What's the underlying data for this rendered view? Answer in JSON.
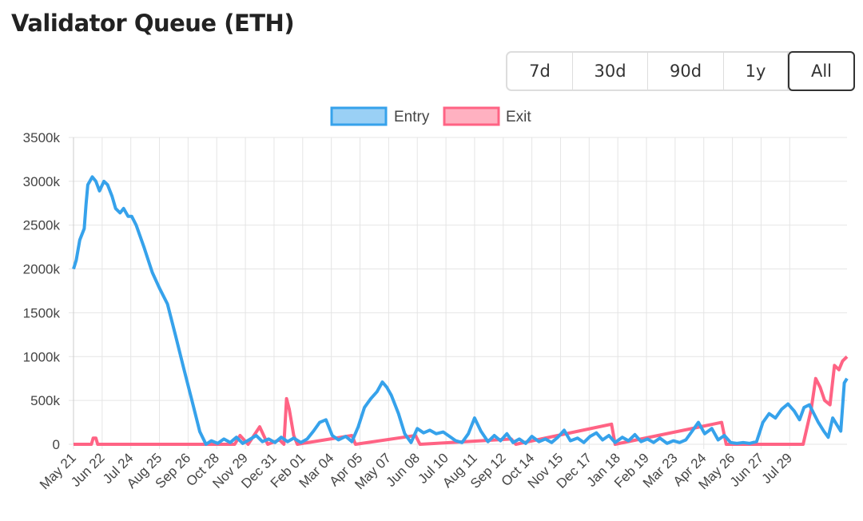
{
  "title": "Validator Queue (ETH)",
  "range_buttons": [
    {
      "label": "7d",
      "active": false
    },
    {
      "label": "30d",
      "active": false
    },
    {
      "label": "90d",
      "active": false
    },
    {
      "label": "1y",
      "active": false
    },
    {
      "label": "All",
      "active": true
    }
  ],
  "colors": {
    "entry": "#36a2eb",
    "entry_fill": "#9ad0f5",
    "exit": "#ff6384",
    "exit_fill": "#ffb1c1",
    "grid": "#e5e5e5"
  },
  "chart_data": {
    "type": "line",
    "title": "Validator Queue (ETH)",
    "xlabel": "",
    "ylabel": "",
    "x_unit": "days since first tick",
    "xlim": [
      0,
      864
    ],
    "ylim": [
      0,
      3500
    ],
    "yticks": [
      0,
      500,
      1000,
      1500,
      2000,
      2500,
      3000,
      3500
    ],
    "ytick_labels": [
      "0",
      "500k",
      "1000k",
      "1500k",
      "2000k",
      "2500k",
      "3000k",
      "3500k"
    ],
    "xtick_labels": [
      "May 21",
      "Jun 22",
      "Jul 24",
      "Aug 25",
      "Sep 26",
      "Oct 28",
      "Nov 29",
      "Dec 31",
      "Feb 01",
      "Mar 04",
      "Apr 05",
      "May 07",
      "Jun 08",
      "Jul 10",
      "Aug 11",
      "Sep 12",
      "Oct 14",
      "Nov 15",
      "Dec 17",
      "Jan 18",
      "Feb 19",
      "Mar 23",
      "Apr 24",
      "May 26",
      "Jun 27",
      "Jul 29"
    ],
    "xtick_step_days": 32,
    "grid": true,
    "legend": "top-center",
    "series": [
      {
        "name": "Entry",
        "points": [
          [
            0,
            2000
          ],
          [
            3,
            2100
          ],
          [
            7,
            2330
          ],
          [
            12,
            2460
          ],
          [
            14,
            2740
          ],
          [
            16,
            2960
          ],
          [
            21,
            3050
          ],
          [
            25,
            3000
          ],
          [
            29,
            2890
          ],
          [
            34,
            3000
          ],
          [
            38,
            2960
          ],
          [
            43,
            2830
          ],
          [
            47,
            2690
          ],
          [
            52,
            2640
          ],
          [
            56,
            2690
          ],
          [
            61,
            2600
          ],
          [
            65,
            2600
          ],
          [
            70,
            2500
          ],
          [
            79,
            2240
          ],
          [
            88,
            1960
          ],
          [
            96,
            1780
          ],
          [
            105,
            1600
          ],
          [
            114,
            1240
          ],
          [
            123,
            870
          ],
          [
            132,
            510
          ],
          [
            141,
            145
          ],
          [
            148,
            0
          ],
          [
            154,
            40
          ],
          [
            161,
            10
          ],
          [
            168,
            60
          ],
          [
            175,
            20
          ],
          [
            182,
            80
          ],
          [
            189,
            10
          ],
          [
            196,
            50
          ],
          [
            204,
            100
          ],
          [
            211,
            30
          ],
          [
            218,
            60
          ],
          [
            225,
            20
          ],
          [
            232,
            80
          ],
          [
            239,
            30
          ],
          [
            246,
            70
          ],
          [
            254,
            20
          ],
          [
            261,
            60
          ],
          [
            268,
            150
          ],
          [
            275,
            250
          ],
          [
            282,
            280
          ],
          [
            289,
            100
          ],
          [
            296,
            50
          ],
          [
            304,
            90
          ],
          [
            311,
            30
          ],
          [
            318,
            200
          ],
          [
            325,
            420
          ],
          [
            332,
            520
          ],
          [
            339,
            600
          ],
          [
            345,
            710
          ],
          [
            350,
            650
          ],
          [
            355,
            560
          ],
          [
            363,
            350
          ],
          [
            370,
            120
          ],
          [
            377,
            20
          ],
          [
            384,
            180
          ],
          [
            391,
            130
          ],
          [
            398,
            160
          ],
          [
            405,
            120
          ],
          [
            413,
            140
          ],
          [
            420,
            90
          ],
          [
            427,
            40
          ],
          [
            434,
            20
          ],
          [
            441,
            120
          ],
          [
            448,
            300
          ],
          [
            455,
            150
          ],
          [
            463,
            30
          ],
          [
            470,
            100
          ],
          [
            477,
            40
          ],
          [
            484,
            120
          ],
          [
            491,
            20
          ],
          [
            498,
            60
          ],
          [
            505,
            10
          ],
          [
            512,
            90
          ],
          [
            520,
            30
          ],
          [
            527,
            60
          ],
          [
            534,
            20
          ],
          [
            541,
            80
          ],
          [
            548,
            160
          ],
          [
            555,
            40
          ],
          [
            563,
            70
          ],
          [
            570,
            20
          ],
          [
            577,
            90
          ],
          [
            584,
            130
          ],
          [
            591,
            50
          ],
          [
            598,
            100
          ],
          [
            605,
            20
          ],
          [
            613,
            80
          ],
          [
            620,
            40
          ],
          [
            627,
            110
          ],
          [
            634,
            30
          ],
          [
            641,
            60
          ],
          [
            648,
            20
          ],
          [
            655,
            70
          ],
          [
            663,
            10
          ],
          [
            670,
            40
          ],
          [
            677,
            20
          ],
          [
            684,
            50
          ],
          [
            691,
            150
          ],
          [
            698,
            250
          ],
          [
            705,
            120
          ],
          [
            713,
            180
          ],
          [
            720,
            50
          ],
          [
            727,
            100
          ],
          [
            734,
            20
          ],
          [
            741,
            10
          ],
          [
            748,
            20
          ],
          [
            755,
            10
          ],
          [
            763,
            30
          ],
          [
            770,
            250
          ],
          [
            777,
            350
          ],
          [
            784,
            300
          ],
          [
            791,
            400
          ],
          [
            798,
            460
          ],
          [
            805,
            380
          ],
          [
            811,
            280
          ],
          [
            816,
            420
          ],
          [
            822,
            450
          ],
          [
            827,
            350
          ],
          [
            832,
            250
          ],
          [
            838,
            150
          ],
          [
            843,
            80
          ],
          [
            848,
            300
          ],
          [
            854,
            200
          ],
          [
            857,
            150
          ],
          [
            861,
            700
          ],
          [
            864,
            750
          ]
        ]
      },
      {
        "name": "Exit",
        "points": [
          [
            0,
            0
          ],
          [
            20,
            0
          ],
          [
            22,
            70
          ],
          [
            25,
            70
          ],
          [
            27,
            0
          ],
          [
            180,
            0
          ],
          [
            186,
            100
          ],
          [
            195,
            0
          ],
          [
            208,
            200
          ],
          [
            217,
            0
          ],
          [
            230,
            50
          ],
          [
            235,
            0
          ],
          [
            238,
            520
          ],
          [
            241,
            400
          ],
          [
            246,
            100
          ],
          [
            250,
            0
          ],
          [
            311,
            100
          ],
          [
            315,
            0
          ],
          [
            382,
            100
          ],
          [
            387,
            0
          ],
          [
            489,
            60
          ],
          [
            494,
            0
          ],
          [
            601,
            230
          ],
          [
            605,
            0
          ],
          [
            724,
            250
          ],
          [
            729,
            0
          ],
          [
            815,
            0
          ],
          [
            824,
            400
          ],
          [
            829,
            750
          ],
          [
            834,
            650
          ],
          [
            839,
            500
          ],
          [
            845,
            450
          ],
          [
            850,
            900
          ],
          [
            855,
            850
          ],
          [
            859,
            950
          ],
          [
            864,
            1000
          ]
        ]
      }
    ]
  }
}
